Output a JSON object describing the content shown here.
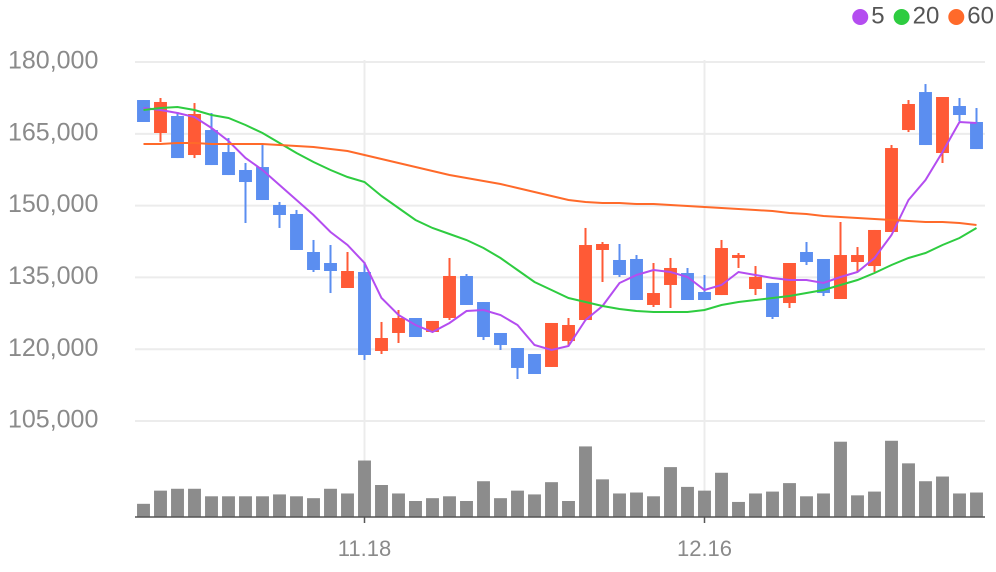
{
  "chart_data": {
    "type": "candlestick",
    "categories": [
      null,
      null,
      null,
      null,
      null,
      null,
      null,
      null,
      null,
      null,
      null,
      null,
      null,
      "11.18",
      null,
      null,
      null,
      null,
      null,
      null,
      null,
      null,
      null,
      null,
      null,
      null,
      null,
      null,
      null,
      null,
      null,
      null,
      null,
      "12.16",
      null,
      null,
      null,
      null,
      null,
      null,
      null,
      null,
      null,
      null,
      null,
      null,
      null,
      null,
      null,
      null
    ],
    "open": [
      172060,
      165170,
      168720,
      160570,
      165790,
      161200,
      157440,
      158060,
      150130,
      148250,
      140310,
      138010,
      132790,
      136130,
      119630,
      123390,
      126520,
      123600,
      126520,
      135300,
      129860,
      123390,
      120250,
      119000,
      116290,
      121710,
      126100,
      140730,
      138640,
      138850,
      129240,
      133420,
      135920,
      131950,
      131320,
      139060,
      132580,
      133840,
      129650,
      140310,
      138850,
      130490,
      138220,
      137380,
      144490,
      165790,
      173730,
      160990,
      170810,
      167470
    ],
    "high": [
      172060,
      172480,
      169560,
      171430,
      169350,
      164120,
      158900,
      162660,
      150760,
      149090,
      142820,
      141770,
      140310,
      138220,
      125690,
      128190,
      126520,
      125900,
      139060,
      135710,
      129860,
      123390,
      120250,
      119000,
      125480,
      126520,
      145330,
      142400,
      141980,
      139680,
      138010,
      139060,
      136970,
      135500,
      142820,
      140100,
      137380,
      133840,
      138010,
      142400,
      138850,
      146580,
      141350,
      144910,
      162660,
      172060,
      175400,
      172690,
      172480,
      170390
    ],
    "low": [
      167470,
      163290,
      159940,
      159940,
      158480,
      156390,
      146370,
      151170,
      145330,
      140730,
      136130,
      131740,
      132790,
      117750,
      119000,
      121300,
      122550,
      123600,
      126100,
      129240,
      121920,
      119840,
      113780,
      114820,
      116290,
      120880,
      126100,
      134040,
      135090,
      130280,
      128820,
      128610,
      130280,
      130280,
      131320,
      136970,
      131320,
      126310,
      128610,
      137590,
      131110,
      130490,
      136130,
      136130,
      144490,
      165370,
      162660,
      158900,
      167680,
      161820
    ],
    "close": [
      167470,
      171650,
      159940,
      169140,
      158480,
      156390,
      154930,
      151170,
      148040,
      140730,
      136550,
      136340,
      136340,
      118790,
      122340,
      126520,
      122550,
      125900,
      135300,
      129240,
      122550,
      120880,
      116080,
      114820,
      125480,
      125060,
      141770,
      141980,
      135500,
      130280,
      131740,
      136970,
      130280,
      130280,
      141140,
      139680,
      135090,
      126730,
      138010,
      138220,
      131740,
      139680,
      139680,
      144910,
      162030,
      171230,
      162660,
      172690,
      168930,
      161820
    ],
    "volume": [
      14,
      28,
      30,
      30,
      22,
      22,
      22,
      22,
      24,
      22,
      20,
      30,
      25,
      60,
      34,
      25,
      17,
      20,
      22,
      17,
      38,
      20,
      28,
      24,
      37,
      17,
      75,
      40,
      25,
      26,
      22,
      53,
      32,
      28,
      47,
      16,
      25,
      27,
      36,
      22,
      25,
      80,
      23,
      27,
      81,
      57,
      38,
      43,
      25,
      26
    ],
    "up_color": "#ff5a36",
    "down_color": "#5b8ef0",
    "volume_color": "#8c8c8c",
    "ylim": [
      101660,
      184600
    ],
    "yticks": [
      {
        "value": 105000,
        "label": "105,000"
      },
      {
        "value": 120000,
        "label": "120,000"
      },
      {
        "value": 135000,
        "label": "135,000"
      },
      {
        "value": 150000,
        "label": "150,000"
      },
      {
        "value": 165000,
        "label": "165,000"
      },
      {
        "value": 180000,
        "label": "180,000"
      }
    ],
    "volume_ylim": [
      0,
      85
    ],
    "grid": true,
    "legend": "top-right",
    "series": [
      {
        "name": "5",
        "color": "#b44df0",
        "values": [
          170390,
          169970,
          169350,
          168510,
          166210,
          163500,
          159940,
          157440,
          154310,
          151170,
          148040,
          144490,
          141770,
          138010,
          130700,
          127150,
          125060,
          123600,
          125480,
          127990,
          128190,
          127150,
          125060,
          120880,
          119840,
          120670,
          126100,
          129030,
          133840,
          135500,
          136550,
          136130,
          135090,
          132370,
          133420,
          136130,
          135500,
          134880,
          134460,
          134460,
          133840,
          135090,
          136130,
          139060,
          143860,
          151170,
          155350,
          161200,
          167470,
          167260
        ]
      },
      {
        "name": "20",
        "color": "#2ecc40",
        "values": [
          169970,
          170390,
          170600,
          169970,
          168930,
          168300,
          166840,
          165170,
          163080,
          160990,
          159110,
          157440,
          155980,
          154930,
          152010,
          149500,
          146990,
          145330,
          144070,
          142820,
          141140,
          139060,
          136550,
          134040,
          132370,
          130700,
          129860,
          129030,
          128400,
          127990,
          127780,
          127780,
          127780,
          128190,
          129240,
          129860,
          130280,
          130700,
          131110,
          131740,
          132370,
          133420,
          134460,
          135920,
          137590,
          139060,
          140100,
          141770,
          143240,
          145330
        ]
      },
      {
        "name": "60",
        "color": "#ff6a2a",
        "values": [
          162870,
          162870,
          163080,
          163080,
          162870,
          162870,
          162870,
          162870,
          162660,
          162450,
          162240,
          161820,
          161410,
          160570,
          159740,
          158900,
          158060,
          157230,
          156390,
          155770,
          155140,
          154510,
          153680,
          152840,
          152010,
          151170,
          150750,
          150540,
          150540,
          150340,
          150340,
          150130,
          149920,
          149710,
          149500,
          149290,
          149080,
          148870,
          148460,
          148250,
          147830,
          147620,
          147410,
          147200,
          146990,
          146780,
          146570,
          146570,
          146360,
          145950
        ]
      }
    ]
  }
}
